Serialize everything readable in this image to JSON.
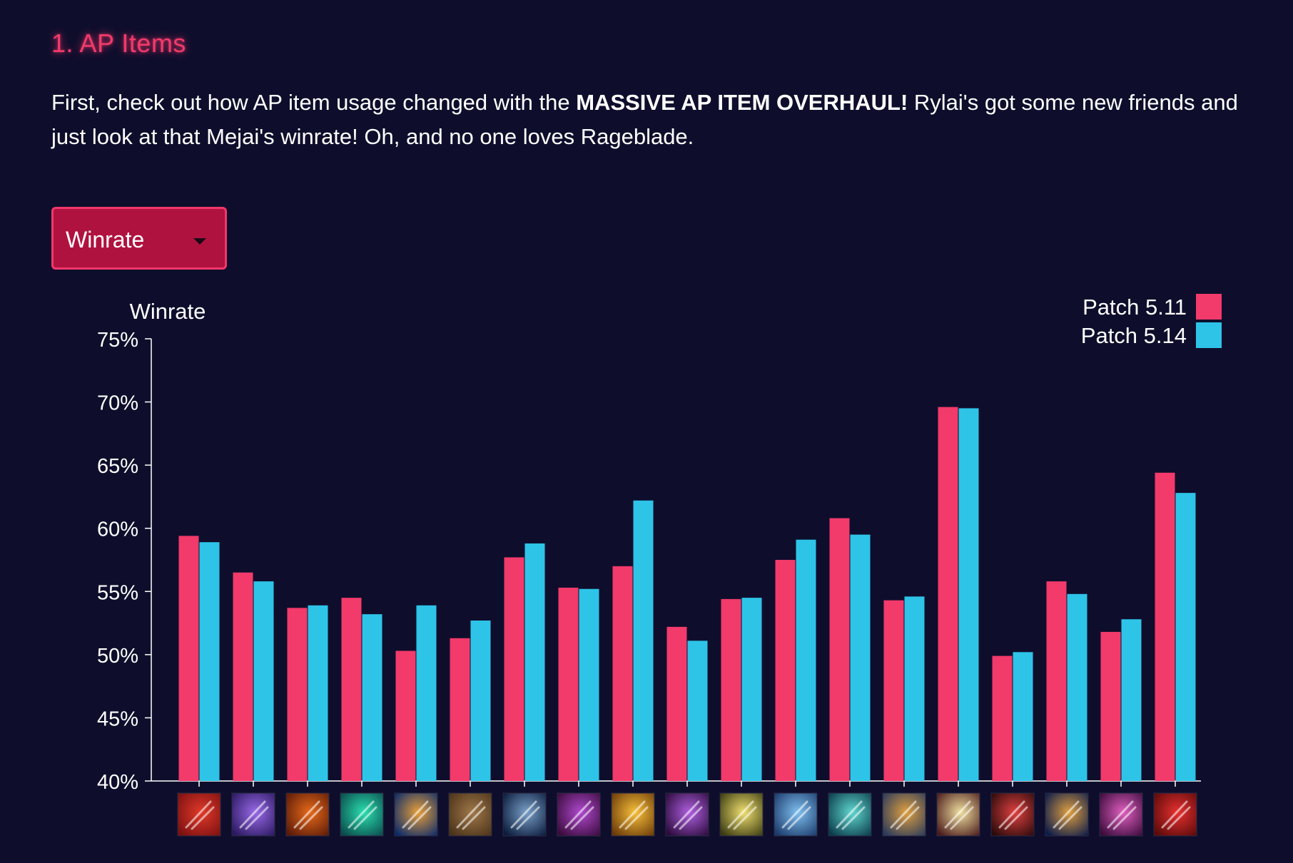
{
  "section": {
    "title": "1. AP Items"
  },
  "intro": {
    "text_before": "First, check out how AP item usage changed with the ",
    "bold": "MASSIVE AP ITEM OVERHAUL!",
    "text_after": " Rylai's got some new friends and just look at that Mejai's winrate! Oh, and no one loves Rageblade."
  },
  "metric_dropdown": {
    "selected": "Winrate",
    "icon": "caret-down-icon"
  },
  "colors": {
    "background": "#0e0e2c",
    "accent": "#f23a6b",
    "patch_5_11": "#f23a6b",
    "patch_5_14": "#2ec4e8"
  },
  "chart_data": {
    "type": "bar",
    "ylabel": "Winrate",
    "xlabel": "",
    "ylim": [
      40,
      75
    ],
    "yticks": [
      40,
      45,
      50,
      55,
      60,
      65,
      70,
      75
    ],
    "ytick_labels": [
      "40%",
      "45%",
      "50%",
      "55%",
      "60%",
      "65%",
      "70%",
      "75%"
    ],
    "legend_position": "top-right",
    "grid": false,
    "categories": [
      "item-icon-1",
      "item-icon-2",
      "item-icon-3",
      "item-icon-4",
      "item-icon-5",
      "item-icon-6",
      "item-icon-7",
      "item-icon-8",
      "item-icon-9",
      "item-icon-10",
      "item-icon-11",
      "item-icon-12",
      "item-icon-13",
      "item-icon-14",
      "item-icon-15",
      "item-icon-16",
      "item-icon-17",
      "item-icon-18",
      "item-icon-19"
    ],
    "category_icon_colors": [
      [
        "#7a1010",
        "#e23a2a"
      ],
      [
        "#2a1860",
        "#9a6ae8"
      ],
      [
        "#5a1a08",
        "#e86a1a"
      ],
      [
        "#0a4a4a",
        "#2ae0b0"
      ],
      [
        "#0a2a6a",
        "#e8a03a"
      ],
      [
        "#4a3218",
        "#a0784a"
      ],
      [
        "#0a1a3a",
        "#7aa0c8"
      ],
      [
        "#3a0a3a",
        "#b04ad0"
      ],
      [
        "#6a3a08",
        "#f8c03a"
      ],
      [
        "#2a0a3a",
        "#b060e0"
      ],
      [
        "#3a3a10",
        "#f0e070"
      ],
      [
        "#1a3a6a",
        "#80c0f0"
      ],
      [
        "#0a3a4a",
        "#60d8d0"
      ],
      [
        "#2a3a5a",
        "#e0a040"
      ],
      [
        "#4a1a1a",
        "#f0e0a0"
      ],
      [
        "#2a0a0a",
        "#e04040"
      ],
      [
        "#0a1a4a",
        "#e0a040"
      ],
      [
        "#3a0a3a",
        "#e060c0"
      ],
      [
        "#5a0a0a",
        "#e83030"
      ]
    ],
    "series": [
      {
        "name": "Patch 5.11",
        "color": "#f23a6b",
        "values": [
          59.4,
          56.5,
          53.7,
          54.5,
          50.3,
          51.3,
          57.7,
          55.3,
          57.0,
          52.2,
          54.4,
          57.5,
          60.8,
          54.3,
          69.6,
          49.9,
          55.8,
          51.8,
          64.4
        ]
      },
      {
        "name": "Patch 5.14",
        "color": "#2ec4e8",
        "values": [
          58.9,
          55.8,
          53.9,
          53.2,
          53.9,
          52.7,
          58.8,
          55.2,
          62.2,
          51.1,
          54.5,
          59.1,
          59.5,
          54.6,
          69.5,
          50.2,
          54.8,
          52.8,
          62.8
        ]
      }
    ]
  }
}
